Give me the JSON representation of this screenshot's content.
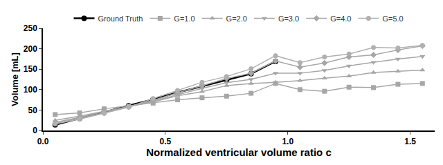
{
  "chart_data": {
    "type": "line",
    "x_label": "Normalized ventricular volume ratio c",
    "y_label": "Volume [mL]",
    "x": [
      0.05,
      0.15,
      0.25,
      0.35,
      0.45,
      0.55,
      0.65,
      0.75,
      0.85,
      0.95,
      1.05,
      1.15,
      1.25,
      1.35,
      1.45,
      1.55
    ],
    "series": [
      {
        "name": "Ground Truth",
        "color": "#000000",
        "marker": "circle",
        "values": [
          14,
          29,
          45,
          61,
          76,
          93,
          108,
          123,
          139,
          169,
          null,
          null,
          null,
          null,
          null,
          null
        ]
      },
      {
        "name": "G=1.0",
        "color": "#a6a6a6",
        "marker": "square",
        "values": [
          39,
          43,
          53,
          60,
          67,
          75,
          80,
          84,
          91,
          115,
          100,
          96,
          106,
          105,
          113,
          115
        ]
      },
      {
        "name": "G=2.0",
        "color": "#a6a6a6",
        "marker": "triangle-up",
        "values": [
          25,
          35,
          47,
          58,
          70,
          85,
          95,
          110,
          115,
          118,
          122,
          128,
          133,
          142,
          145,
          148
        ]
      },
      {
        "name": "G=3.0",
        "color": "#a6a6a6",
        "marker": "triangle-down",
        "values": [
          20,
          32,
          46,
          58,
          72,
          88,
          103,
          117,
          125,
          140,
          140,
          147,
          158,
          167,
          175,
          181
        ]
      },
      {
        "name": "G=4.0",
        "color": "#a6a6a6",
        "marker": "diamond",
        "values": [
          17,
          30,
          43,
          58,
          74,
          92,
          110,
          127,
          140,
          170,
          155,
          165,
          180,
          185,
          197,
          207
        ]
      },
      {
        "name": "G=5.0",
        "color": "#b0b0b0",
        "marker": "circle",
        "values": [
          16,
          28,
          42,
          57,
          78,
          98,
          118,
          132,
          151,
          183,
          166,
          180,
          187,
          203,
          202,
          208
        ]
      }
    ],
    "xlim": [
      0,
      1.6
    ],
    "xticks": [
      {
        "value": 0,
        "label": "0.0"
      },
      0.5,
      {
        "value": 1,
        "label": "1.0"
      },
      1.5
    ],
    "ylim": [
      0,
      250
    ],
    "yticks": [
      0,
      50,
      100,
      150,
      200,
      250
    ],
    "grid": false,
    "legend": "top"
  }
}
